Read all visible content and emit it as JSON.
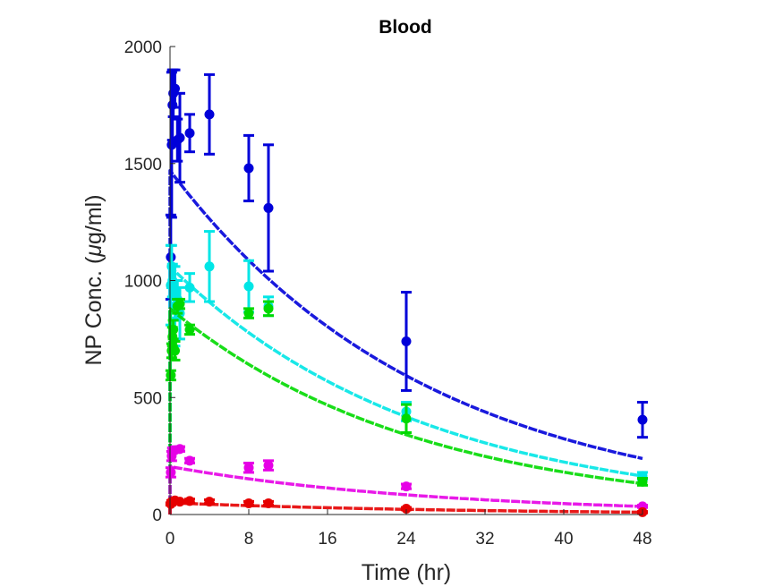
{
  "chart_data": {
    "type": "scatter",
    "title": "Blood",
    "xlabel": "Time (hr)",
    "ylabel_parts": {
      "before": "NP Conc. (",
      "mu": "μ",
      "after": "g/ml)"
    },
    "xlim": [
      0,
      48
    ],
    "ylim": [
      0,
      2000
    ],
    "xticks": [
      "0",
      "8",
      "16",
      "24",
      "32",
      "40",
      "48"
    ],
    "yticks": [
      "0",
      "500",
      "1000",
      "1500",
      "2000"
    ],
    "grid": false,
    "series": [
      {
        "color": "#0000d9",
        "points": [
          {
            "x": 0.08,
            "y": 1100,
            "err": 180
          },
          {
            "x": 0.17,
            "y": 1580,
            "err": 310
          },
          {
            "x": 0.25,
            "y": 1750,
            "err": 150
          },
          {
            "x": 0.33,
            "y": 1800,
            "err": 100
          },
          {
            "x": 0.5,
            "y": 1820,
            "err": 80
          },
          {
            "x": 0.75,
            "y": 1600,
            "err": 90
          },
          {
            "x": 1,
            "y": 1610,
            "err": 190
          },
          {
            "x": 2,
            "y": 1630,
            "err": 80
          },
          {
            "x": 4,
            "y": 1710,
            "err": 170
          },
          {
            "x": 8,
            "y": 1480,
            "err": 140
          },
          {
            "x": 10,
            "y": 1310,
            "err": 270
          },
          {
            "x": 24,
            "y": 740,
            "err": 210
          },
          {
            "x": 48,
            "y": 405,
            "err": 75
          }
        ],
        "fit": {
          "c0": 1470,
          "k": 0.0378
        }
      },
      {
        "color": "#00e6e6",
        "points": [
          {
            "x": 0.08,
            "y": 980,
            "err": 170
          },
          {
            "x": 0.17,
            "y": 1060,
            "err": 90
          },
          {
            "x": 0.25,
            "y": 1000,
            "err": 70
          },
          {
            "x": 0.5,
            "y": 890,
            "err": 170
          },
          {
            "x": 0.75,
            "y": 920,
            "err": 80
          },
          {
            "x": 1,
            "y": 860,
            "err": 110
          },
          {
            "x": 2,
            "y": 970,
            "err": 60
          },
          {
            "x": 4,
            "y": 1060,
            "err": 150
          },
          {
            "x": 8,
            "y": 975,
            "err": 110
          },
          {
            "x": 10,
            "y": 890,
            "err": 40
          },
          {
            "x": 24,
            "y": 440,
            "err": 40
          },
          {
            "x": 48,
            "y": 165,
            "err": 15
          }
        ],
        "fit": {
          "c0": 1060,
          "k": 0.0388
        }
      },
      {
        "color": "#00d900",
        "points": [
          {
            "x": 0.08,
            "y": 595,
            "err": 20
          },
          {
            "x": 0.17,
            "y": 700,
            "err": 30
          },
          {
            "x": 0.25,
            "y": 760,
            "err": 40
          },
          {
            "x": 0.33,
            "y": 790,
            "err": 40
          },
          {
            "x": 0.5,
            "y": 700,
            "err": 40
          },
          {
            "x": 0.75,
            "y": 890,
            "err": 30
          },
          {
            "x": 1,
            "y": 900,
            "err": 20
          },
          {
            "x": 2,
            "y": 790,
            "err": 20
          },
          {
            "x": 8,
            "y": 860,
            "err": 20
          },
          {
            "x": 10,
            "y": 880,
            "err": 30
          },
          {
            "x": 24,
            "y": 410,
            "err": 60
          },
          {
            "x": 48,
            "y": 140,
            "err": 15
          }
        ],
        "fit": {
          "c0": 880,
          "k": 0.0395
        }
      },
      {
        "color": "#e600e6",
        "points": [
          {
            "x": 0.08,
            "y": 180,
            "err": 20
          },
          {
            "x": 0.17,
            "y": 250,
            "err": 20
          },
          {
            "x": 0.25,
            "y": 275,
            "err": 10
          },
          {
            "x": 0.5,
            "y": 275,
            "err": 10
          },
          {
            "x": 1,
            "y": 280,
            "err": 10
          },
          {
            "x": 2,
            "y": 230,
            "err": 10
          },
          {
            "x": 8,
            "y": 200,
            "err": 20
          },
          {
            "x": 10,
            "y": 210,
            "err": 20
          },
          {
            "x": 24,
            "y": 120,
            "err": 10
          },
          {
            "x": 48,
            "y": 35,
            "err": 5
          }
        ],
        "fit": {
          "c0": 205,
          "k": 0.037
        }
      },
      {
        "color": "#e60000",
        "points": [
          {
            "x": 0.08,
            "y": 45,
            "err": 5
          },
          {
            "x": 0.17,
            "y": 55,
            "err": 5
          },
          {
            "x": 0.25,
            "y": 55,
            "err": 5
          },
          {
            "x": 0.5,
            "y": 60,
            "err": 5
          },
          {
            "x": 1,
            "y": 55,
            "err": 5
          },
          {
            "x": 2,
            "y": 58,
            "err": 8
          },
          {
            "x": 4,
            "y": 55,
            "err": 8
          },
          {
            "x": 8,
            "y": 48,
            "err": 8
          },
          {
            "x": 10,
            "y": 48,
            "err": 8
          },
          {
            "x": 24,
            "y": 25,
            "err": 5
          },
          {
            "x": 48,
            "y": 10,
            "err": 3
          }
        ],
        "fit": {
          "c0": 50,
          "k": 0.034
        }
      }
    ]
  }
}
